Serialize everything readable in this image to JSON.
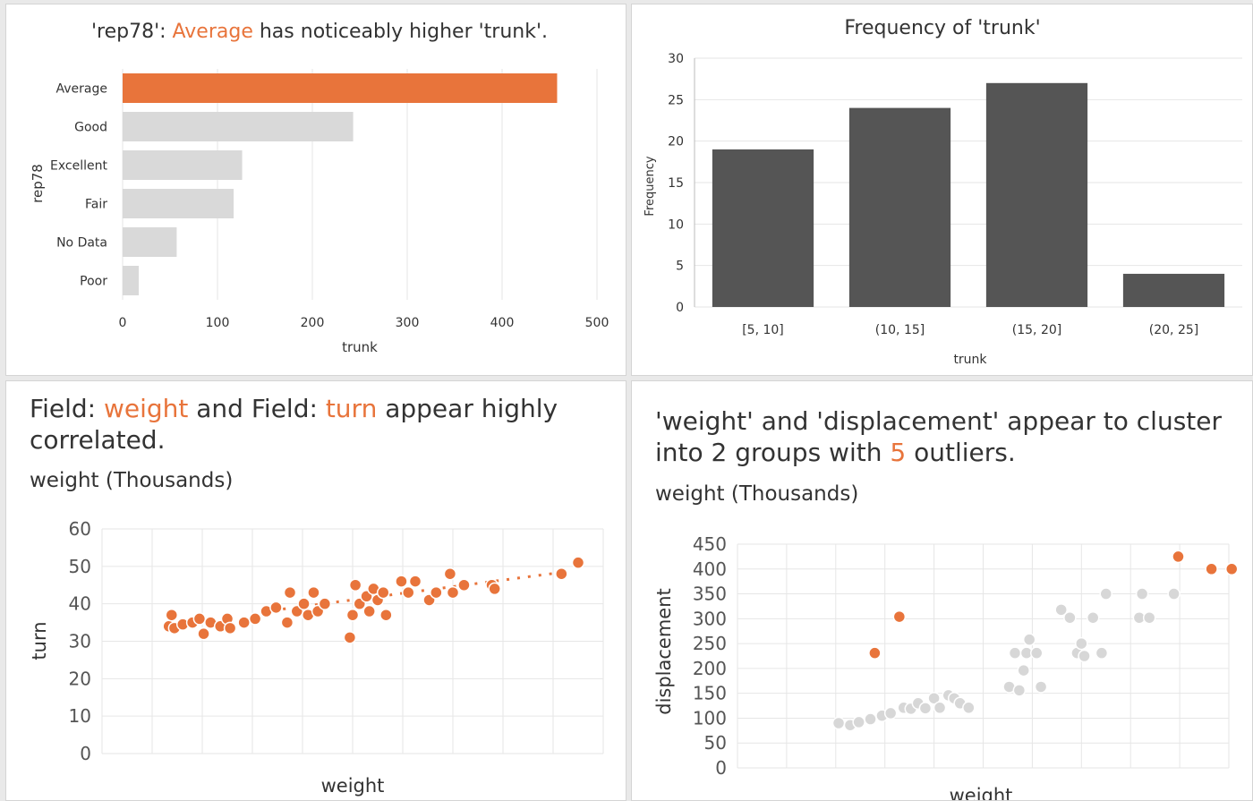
{
  "colors": {
    "highlight": "#e8743b",
    "muted_bar": "#d9d9d9",
    "dark_bar": "#555555",
    "muted_point": "#d7d7d7",
    "grid": "#e6e6e6"
  },
  "chart_data": [
    {
      "id": "rep78-bar",
      "type": "bar",
      "orientation": "horizontal",
      "title_parts": [
        "'rep78': ",
        "Average",
        " has noticeably higher 'trunk'."
      ],
      "xlabel": "trunk",
      "ylabel": "rep78",
      "categories": [
        "Average",
        "Good",
        "Excellent",
        "Fair",
        "No Data",
        "Poor"
      ],
      "values": [
        458,
        243,
        126,
        117,
        57,
        17
      ],
      "highlight_index": 0,
      "xlim": [
        0,
        500
      ],
      "xticks": [
        0,
        100,
        200,
        300,
        400,
        500
      ],
      "grid": "vertical"
    },
    {
      "id": "trunk-histogram",
      "type": "bar",
      "title": "Frequency of 'trunk'",
      "xlabel": "trunk",
      "ylabel": "Frequency",
      "categories": [
        "[5, 10]",
        "(10, 15]",
        "(15, 20]",
        "(20, 25]"
      ],
      "values": [
        19,
        24,
        27,
        4
      ],
      "ylim": [
        0,
        30
      ],
      "yticks": [
        0,
        5,
        10,
        15,
        20,
        25,
        30
      ],
      "grid": "horizontal"
    },
    {
      "id": "weight-turn-scatter",
      "type": "scatter",
      "title_parts": [
        "Field: ",
        "weight",
        " and Field: ",
        "turn",
        " appear highly correlated."
      ],
      "subtitle": "weight (Thousands)",
      "xlabel": "weight",
      "ylabel": "turn",
      "ylim": [
        0,
        60
      ],
      "yticks": [
        0,
        10,
        20,
        30,
        40,
        50,
        60
      ],
      "xlim": [
        1.6,
        5.2
      ],
      "trendline": [
        [
          2.9,
          38.6
        ],
        [
          4.9,
          48.4
        ]
      ],
      "points": [
        [
          2.08,
          34
        ],
        [
          2.1,
          37
        ],
        [
          2.12,
          33.5
        ],
        [
          2.18,
          34.5
        ],
        [
          2.25,
          35
        ],
        [
          2.3,
          36
        ],
        [
          2.33,
          32
        ],
        [
          2.38,
          35
        ],
        [
          2.45,
          34
        ],
        [
          2.5,
          36
        ],
        [
          2.52,
          33.5
        ],
        [
          2.62,
          35
        ],
        [
          2.7,
          36
        ],
        [
          2.78,
          38
        ],
        [
          2.85,
          39
        ],
        [
          2.93,
          35
        ],
        [
          2.95,
          43
        ],
        [
          3.0,
          38
        ],
        [
          3.05,
          40
        ],
        [
          3.08,
          37
        ],
        [
          3.12,
          43
        ],
        [
          3.15,
          38
        ],
        [
          3.2,
          40
        ],
        [
          3.38,
          31
        ],
        [
          3.4,
          37
        ],
        [
          3.42,
          45
        ],
        [
          3.45,
          40
        ],
        [
          3.5,
          42
        ],
        [
          3.52,
          38
        ],
        [
          3.55,
          44
        ],
        [
          3.58,
          41
        ],
        [
          3.62,
          43
        ],
        [
          3.64,
          37
        ],
        [
          3.75,
          46
        ],
        [
          3.8,
          43
        ],
        [
          3.85,
          46
        ],
        [
          3.95,
          41
        ],
        [
          4.0,
          43
        ],
        [
          4.1,
          48
        ],
        [
          4.12,
          43
        ],
        [
          4.2,
          45
        ],
        [
          4.4,
          45
        ],
        [
          4.42,
          44
        ],
        [
          4.9,
          48
        ],
        [
          5.02,
          51
        ]
      ]
    },
    {
      "id": "weight-displacement-scatter",
      "type": "scatter",
      "title_parts": [
        "'weight' and 'displacement' appear to cluster into 2 groups with ",
        "5",
        " outliers."
      ],
      "subtitle": "weight (Thousands)",
      "xlabel": "weight",
      "ylabel": "displacement",
      "ylim": [
        0,
        450
      ],
      "yticks": [
        0,
        50,
        100,
        150,
        200,
        250,
        300,
        350,
        400,
        450
      ],
      "xlim": [
        1.6,
        5.0
      ],
      "points_normal": [
        [
          2.3,
          90
        ],
        [
          2.38,
          86
        ],
        [
          2.44,
          92
        ],
        [
          2.52,
          98
        ],
        [
          2.6,
          105
        ],
        [
          2.66,
          110
        ],
        [
          2.75,
          121
        ],
        [
          2.8,
          119
        ],
        [
          2.85,
          130
        ],
        [
          2.9,
          120
        ],
        [
          2.96,
          140
        ],
        [
          3.0,
          121
        ],
        [
          3.06,
          146
        ],
        [
          3.1,
          140
        ],
        [
          3.14,
          130
        ],
        [
          3.2,
          121
        ],
        [
          3.48,
          163
        ],
        [
          3.55,
          156
        ],
        [
          3.58,
          196
        ],
        [
          3.52,
          231
        ],
        [
          3.6,
          231
        ],
        [
          3.62,
          258
        ],
        [
          3.67,
          231
        ],
        [
          3.7,
          163
        ],
        [
          3.84,
          318
        ],
        [
          3.9,
          302
        ],
        [
          3.95,
          231
        ],
        [
          3.98,
          250
        ],
        [
          4.0,
          225
        ],
        [
          4.06,
          302
        ],
        [
          4.12,
          231
        ],
        [
          4.15,
          350
        ],
        [
          4.38,
          302
        ],
        [
          4.4,
          350
        ],
        [
          4.45,
          302
        ],
        [
          4.62,
          350
        ]
      ],
      "points_outlier": [
        [
          2.55,
          231
        ],
        [
          2.72,
          304
        ],
        [
          4.65,
          425
        ],
        [
          4.88,
          400
        ],
        [
          5.02,
          400
        ]
      ]
    }
  ]
}
